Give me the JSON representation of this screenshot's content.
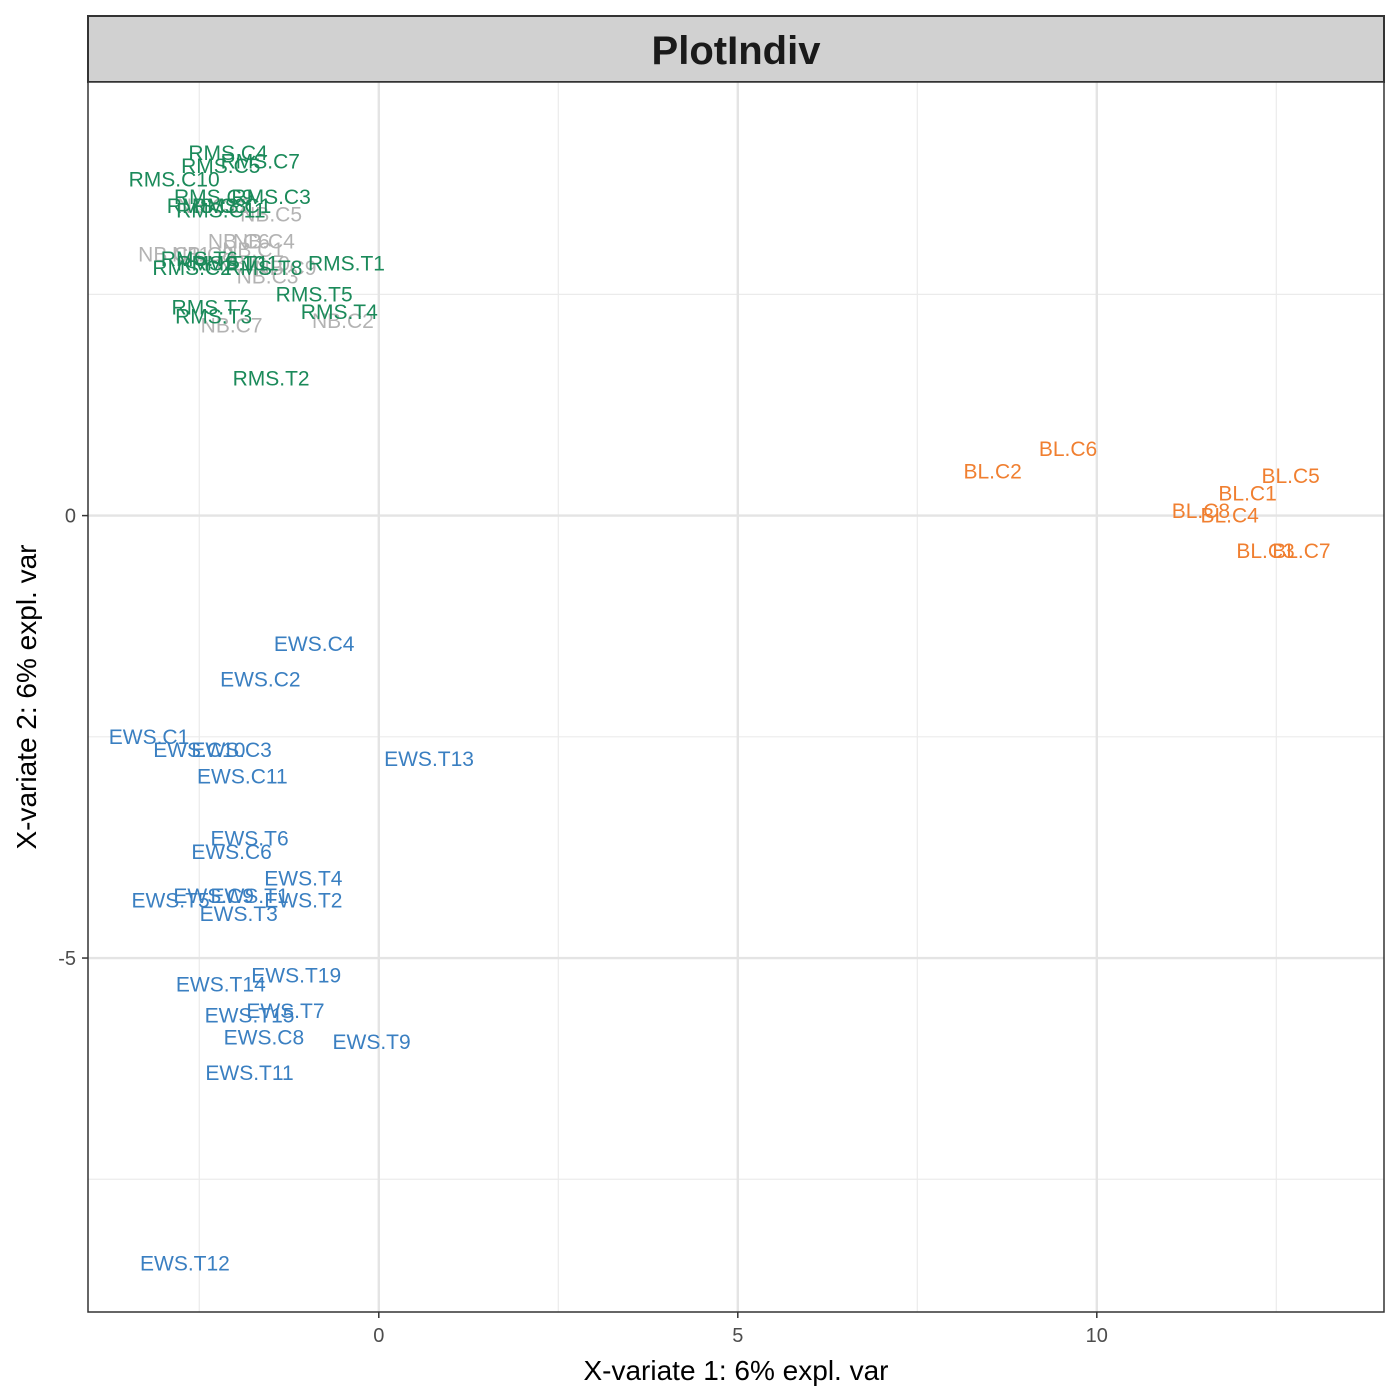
{
  "chart_data": {
    "type": "scatter",
    "title": "PlotIndiv",
    "xlabel": "X-variate 1: 6% expl. var",
    "ylabel": "X-variate 2: 6% expl. var",
    "xlim": [
      -4.05,
      14.0
    ],
    "ylim": [
      -9.0,
      4.9
    ],
    "x_ticks": [
      0,
      5,
      10
    ],
    "y_ticks": [
      -5,
      0
    ],
    "grid": true,
    "legend": "none",
    "group_colors": {
      "RMS": "#1b8a5a",
      "NB": "#b3b3b3",
      "BL": "#f07f30",
      "EWS": "#3a7fc1"
    },
    "points": [
      {
        "label": "NB.C1",
        "group": "NB",
        "x": -1.75,
        "y": 3.0
      },
      {
        "label": "NB.C2",
        "group": "NB",
        "x": -0.5,
        "y": 2.2
      },
      {
        "label": "NB.C3",
        "group": "NB",
        "x": -1.55,
        "y": 2.7
      },
      {
        "label": "NB.C4",
        "group": "NB",
        "x": -1.6,
        "y": 3.1
      },
      {
        "label": "NB.C5",
        "group": "NB",
        "x": -1.5,
        "y": 3.4
      },
      {
        "label": "NB.C6",
        "group": "NB",
        "x": -1.95,
        "y": 3.1
      },
      {
        "label": "NB.C7",
        "group": "NB",
        "x": -2.05,
        "y": 2.15
      },
      {
        "label": "NB.C8",
        "group": "NB",
        "x": -2.45,
        "y": 2.95
      },
      {
        "label": "NB.C9",
        "group": "NB",
        "x": -1.3,
        "y": 2.8
      },
      {
        "label": "NB.C10",
        "group": "NB",
        "x": -1.75,
        "y": 2.85
      },
      {
        "label": "NB.C11",
        "group": "NB",
        "x": -2.85,
        "y": 2.95
      },
      {
        "label": "NB.C12",
        "group": "NB",
        "x": -2.3,
        "y": 3.5
      },
      {
        "label": "RMS.C1",
        "group": "RMS",
        "x": -2.05,
        "y": 3.5
      },
      {
        "label": "RMS.C2",
        "group": "RMS",
        "x": -2.6,
        "y": 2.8
      },
      {
        "label": "RMS.C3",
        "group": "RMS",
        "x": -1.5,
        "y": 3.6
      },
      {
        "label": "RMS.C4",
        "group": "RMS",
        "x": -2.1,
        "y": 4.1
      },
      {
        "label": "RMS.C5",
        "group": "RMS",
        "x": -2.2,
        "y": 3.95
      },
      {
        "label": "RMS.C7",
        "group": "RMS",
        "x": -1.65,
        "y": 4.0
      },
      {
        "label": "RMS.C8",
        "group": "RMS",
        "x": -2.4,
        "y": 3.5
      },
      {
        "label": "RMS.C9",
        "group": "RMS",
        "x": -2.3,
        "y": 3.6
      },
      {
        "label": "RMS.C10",
        "group": "RMS",
        "x": -2.85,
        "y": 3.8
      },
      {
        "label": "RMS.C11",
        "group": "RMS",
        "x": -2.2,
        "y": 3.45
      },
      {
        "label": "RMS.T1",
        "group": "RMS",
        "x": -0.45,
        "y": 2.85
      },
      {
        "label": "RMS.T2",
        "group": "RMS",
        "x": -1.5,
        "y": 1.55
      },
      {
        "label": "RMS.T3",
        "group": "RMS",
        "x": -2.3,
        "y": 2.25
      },
      {
        "label": "RMS.T4",
        "group": "RMS",
        "x": -0.55,
        "y": 2.3
      },
      {
        "label": "RMS.T5",
        "group": "RMS",
        "x": -0.9,
        "y": 2.5
      },
      {
        "label": "RMS.T6",
        "group": "RMS",
        "x": -2.5,
        "y": 2.9
      },
      {
        "label": "RMS.T7",
        "group": "RMS",
        "x": -2.35,
        "y": 2.35
      },
      {
        "label": "RMS.T8",
        "group": "RMS",
        "x": -1.6,
        "y": 2.8
      },
      {
        "label": "RMS.T10",
        "group": "RMS",
        "x": -2.2,
        "y": 2.85
      },
      {
        "label": "RMS.T11",
        "group": "RMS",
        "x": -2.0,
        "y": 2.85
      },
      {
        "label": "BL.C1",
        "group": "BL",
        "x": 12.1,
        "y": 0.25
      },
      {
        "label": "BL.C2",
        "group": "BL",
        "x": 8.55,
        "y": 0.5
      },
      {
        "label": "BL.C3",
        "group": "BL",
        "x": 12.35,
        "y": -0.4
      },
      {
        "label": "BL.C4",
        "group": "BL",
        "x": 11.85,
        "y": 0.0
      },
      {
        "label": "BL.C5",
        "group": "BL",
        "x": 12.7,
        "y": 0.45
      },
      {
        "label": "BL.C6",
        "group": "BL",
        "x": 9.6,
        "y": 0.75
      },
      {
        "label": "BL.C7",
        "group": "BL",
        "x": 12.85,
        "y": -0.4
      },
      {
        "label": "BL.C8",
        "group": "BL",
        "x": 11.45,
        "y": 0.05
      },
      {
        "label": "EWS.C1",
        "group": "EWS",
        "x": -3.2,
        "y": -2.5
      },
      {
        "label": "EWS.C2",
        "group": "EWS",
        "x": -1.65,
        "y": -1.85
      },
      {
        "label": "EWS.C3",
        "group": "EWS",
        "x": -2.05,
        "y": -2.65
      },
      {
        "label": "EWS.C4",
        "group": "EWS",
        "x": -0.9,
        "y": -1.45
      },
      {
        "label": "EWS.C6",
        "group": "EWS",
        "x": -2.05,
        "y": -3.8
      },
      {
        "label": "EWS.C8",
        "group": "EWS",
        "x": -1.6,
        "y": -5.9
      },
      {
        "label": "EWS.C9",
        "group": "EWS",
        "x": -2.3,
        "y": -4.3
      },
      {
        "label": "EWS.C10",
        "group": "EWS",
        "x": -2.5,
        "y": -2.65
      },
      {
        "label": "EWS.C11",
        "group": "EWS",
        "x": -1.9,
        "y": -2.95
      },
      {
        "label": "EWS.T1",
        "group": "EWS",
        "x": -1.8,
        "y": -4.3
      },
      {
        "label": "EWS.T2",
        "group": "EWS",
        "x": -1.05,
        "y": -4.35
      },
      {
        "label": "EWS.T3",
        "group": "EWS",
        "x": -1.95,
        "y": -4.5
      },
      {
        "label": "EWS.T4",
        "group": "EWS",
        "x": -1.05,
        "y": -4.1
      },
      {
        "label": "EWS.T5",
        "group": "EWS",
        "x": -2.9,
        "y": -4.35
      },
      {
        "label": "EWS.T6",
        "group": "EWS",
        "x": -1.8,
        "y": -3.65
      },
      {
        "label": "EWS.T7",
        "group": "EWS",
        "x": -1.3,
        "y": -5.6
      },
      {
        "label": "EWS.T9",
        "group": "EWS",
        "x": -0.1,
        "y": -5.95
      },
      {
        "label": "EWS.T11",
        "group": "EWS",
        "x": -1.8,
        "y": -6.3
      },
      {
        "label": "EWS.T12",
        "group": "EWS",
        "x": -2.7,
        "y": -8.45
      },
      {
        "label": "EWS.T13",
        "group": "EWS",
        "x": 0.7,
        "y": -2.75
      },
      {
        "label": "EWS.T14",
        "group": "EWS",
        "x": -2.2,
        "y": -5.3
      },
      {
        "label": "EWS.T15",
        "group": "EWS",
        "x": -1.8,
        "y": -5.65
      },
      {
        "label": "EWS.T19",
        "group": "EWS",
        "x": -1.15,
        "y": -5.2
      }
    ]
  }
}
